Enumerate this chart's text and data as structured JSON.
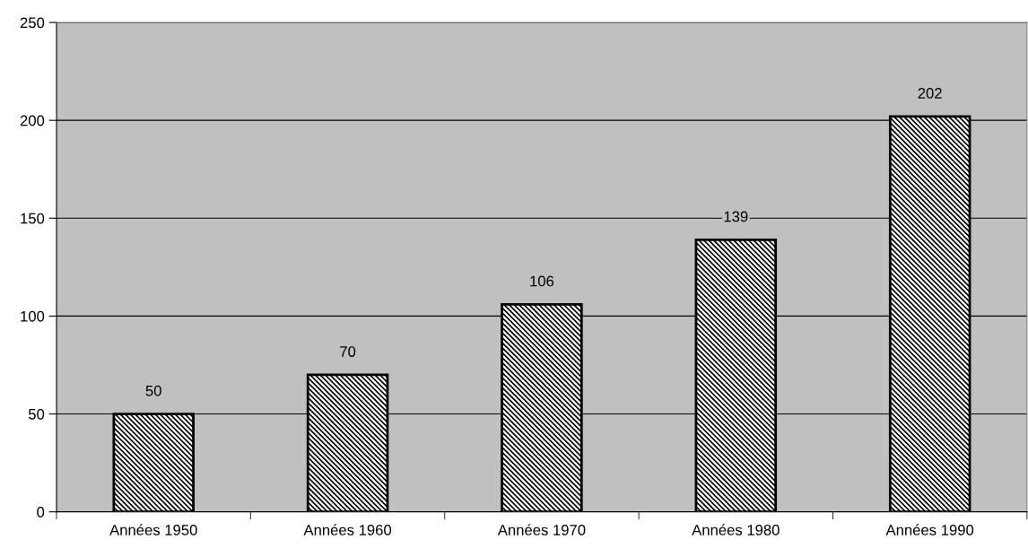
{
  "chart_data": {
    "type": "bar",
    "categories": [
      "Années 1950",
      "Années 1960",
      "Années 1970",
      "Années 1980",
      "Années 1990"
    ],
    "values": [
      50,
      70,
      106,
      139,
      202
    ],
    "color": "#000000",
    "ylim": [
      0,
      250
    ],
    "yticks": [
      0,
      50,
      100,
      150,
      200,
      250
    ],
    "grid": "y",
    "data_labels": true
  }
}
